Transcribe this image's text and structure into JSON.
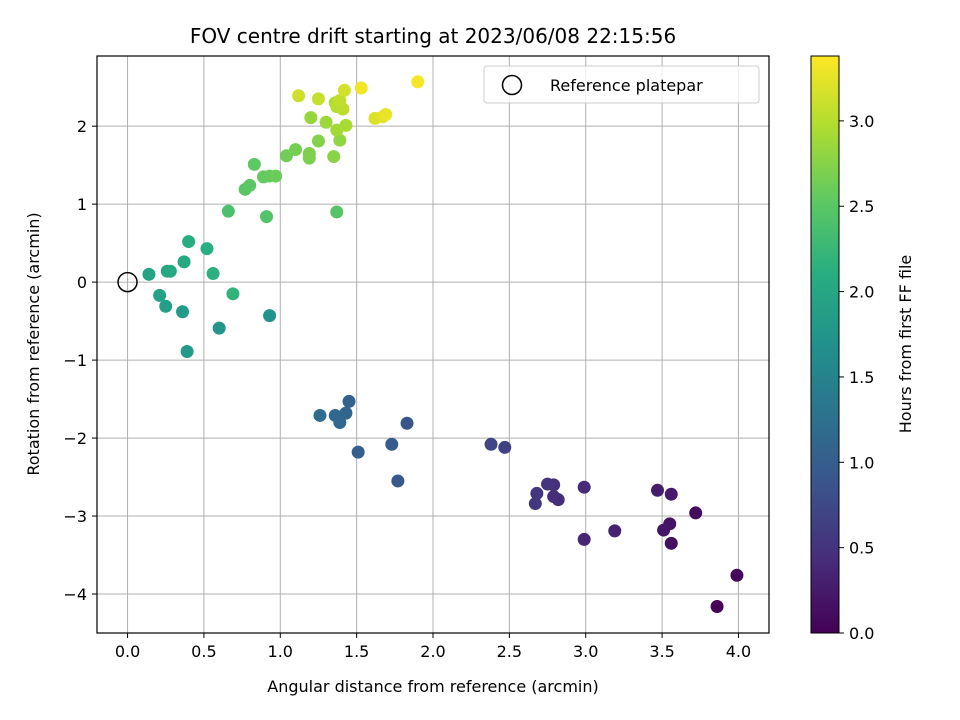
{
  "chart_data": {
    "type": "scatter",
    "title": "FOV centre drift starting at 2023/06/08 22:15:56",
    "xlabel": "Angular distance from reference (arcmin)",
    "ylabel": "Rotation from reference (arcmin)",
    "xlim": [
      -0.2,
      4.2
    ],
    "ylim": [
      -4.5,
      2.9
    ],
    "xticks": [
      0.0,
      0.5,
      1.0,
      1.5,
      2.0,
      2.5,
      3.0,
      3.5,
      4.0
    ],
    "xtick_labels": [
      "0.0",
      "0.5",
      "1.0",
      "1.5",
      "2.0",
      "2.5",
      "3.0",
      "3.5",
      "4.0"
    ],
    "yticks": [
      -4,
      -3,
      -2,
      -1,
      0,
      1,
      2
    ],
    "ytick_labels": [
      "−4",
      "−3",
      "−2",
      "−1",
      "0",
      "1",
      "2"
    ],
    "grid": true,
    "legend": {
      "position": "upper right",
      "entries": [
        "Reference platepar"
      ]
    },
    "reference_point": {
      "x": 0.0,
      "y": 0.0
    },
    "colorbar": {
      "label": "Hours from first FF file",
      "colormap": "viridis",
      "min": 0.0,
      "max": 3.38,
      "ticks": [
        0.0,
        0.5,
        1.0,
        1.5,
        2.0,
        2.5,
        3.0
      ],
      "tick_labels": [
        "0.0",
        "0.5",
        "1.0",
        "1.5",
        "2.0",
        "2.5",
        "3.0"
      ]
    },
    "points": [
      {
        "x": 3.86,
        "y": -4.16,
        "c": 0.03
      },
      {
        "x": 3.99,
        "y": -3.76,
        "c": 0.06
      },
      {
        "x": 3.72,
        "y": -2.96,
        "c": 0.1
      },
      {
        "x": 3.56,
        "y": -3.35,
        "c": 0.14
      },
      {
        "x": 3.55,
        "y": -3.1,
        "c": 0.18
      },
      {
        "x": 3.51,
        "y": -3.18,
        "c": 0.21
      },
      {
        "x": 3.56,
        "y": -2.72,
        "c": 0.24
      },
      {
        "x": 3.47,
        "y": -2.67,
        "c": 0.27
      },
      {
        "x": 3.19,
        "y": -3.19,
        "c": 0.32
      },
      {
        "x": 2.99,
        "y": -3.3,
        "c": 0.36
      },
      {
        "x": 2.99,
        "y": -2.63,
        "c": 0.4
      },
      {
        "x": 2.82,
        "y": -2.79,
        "c": 0.43
      },
      {
        "x": 2.79,
        "y": -2.75,
        "c": 0.45
      },
      {
        "x": 2.79,
        "y": -2.6,
        "c": 0.47
      },
      {
        "x": 2.75,
        "y": -2.59,
        "c": 0.5
      },
      {
        "x": 2.68,
        "y": -2.71,
        "c": 0.53
      },
      {
        "x": 2.67,
        "y": -2.84,
        "c": 0.56
      },
      {
        "x": 2.47,
        "y": -2.12,
        "c": 0.66
      },
      {
        "x": 2.38,
        "y": -2.08,
        "c": 0.7
      },
      {
        "x": 1.83,
        "y": -1.81,
        "c": 0.9
      },
      {
        "x": 1.77,
        "y": -2.55,
        "c": 0.94
      },
      {
        "x": 1.73,
        "y": -2.08,
        "c": 0.97
      },
      {
        "x": 1.51,
        "y": -2.18,
        "c": 1.02
      },
      {
        "x": 1.45,
        "y": -1.53,
        "c": 1.07
      },
      {
        "x": 1.43,
        "y": -1.68,
        "c": 1.1
      },
      {
        "x": 1.39,
        "y": -1.8,
        "c": 1.13
      },
      {
        "x": 1.36,
        "y": -1.71,
        "c": 1.15
      },
      {
        "x": 1.26,
        "y": -1.71,
        "c": 1.18
      },
      {
        "x": 0.93,
        "y": -0.43,
        "c": 1.72
      },
      {
        "x": 0.6,
        "y": -0.59,
        "c": 1.77
      },
      {
        "x": 0.39,
        "y": -0.89,
        "c": 1.8
      },
      {
        "x": 0.36,
        "y": -0.38,
        "c": 1.84
      },
      {
        "x": 0.25,
        "y": -0.31,
        "c": 1.88
      },
      {
        "x": 0.21,
        "y": -0.17,
        "c": 1.92
      },
      {
        "x": 0.14,
        "y": 0.1,
        "c": 1.95
      },
      {
        "x": 0.26,
        "y": 0.14,
        "c": 1.99
      },
      {
        "x": 0.28,
        "y": 0.14,
        "c": 2.02
      },
      {
        "x": 0.37,
        "y": 0.26,
        "c": 2.05
      },
      {
        "x": 0.4,
        "y": 0.52,
        "c": 2.09
      },
      {
        "x": 0.52,
        "y": 0.43,
        "c": 2.12
      },
      {
        "x": 0.56,
        "y": 0.11,
        "c": 2.15
      },
      {
        "x": 0.69,
        "y": -0.15,
        "c": 2.19
      },
      {
        "x": 0.66,
        "y": 0.91,
        "c": 2.4
      },
      {
        "x": 0.91,
        "y": 0.84,
        "c": 2.44
      },
      {
        "x": 1.37,
        "y": 0.9,
        "c": 2.47
      },
      {
        "x": 0.77,
        "y": 1.19,
        "c": 2.49
      },
      {
        "x": 0.8,
        "y": 1.24,
        "c": 2.51
      },
      {
        "x": 0.83,
        "y": 1.51,
        "c": 2.53
      },
      {
        "x": 0.89,
        "y": 1.35,
        "c": 2.56
      },
      {
        "x": 0.93,
        "y": 1.36,
        "c": 2.58
      },
      {
        "x": 0.97,
        "y": 1.36,
        "c": 2.6
      },
      {
        "x": 1.04,
        "y": 1.62,
        "c": 2.63
      },
      {
        "x": 1.1,
        "y": 1.7,
        "c": 2.66
      },
      {
        "x": 1.19,
        "y": 1.59,
        "c": 2.69
      },
      {
        "x": 1.19,
        "y": 1.65,
        "c": 2.71
      },
      {
        "x": 1.25,
        "y": 1.81,
        "c": 2.74
      },
      {
        "x": 1.35,
        "y": 1.61,
        "c": 2.76
      },
      {
        "x": 1.39,
        "y": 1.82,
        "c": 2.8
      },
      {
        "x": 1.2,
        "y": 2.11,
        "c": 2.83
      },
      {
        "x": 1.3,
        "y": 2.05,
        "c": 2.87
      },
      {
        "x": 1.37,
        "y": 1.95,
        "c": 2.9
      },
      {
        "x": 1.43,
        "y": 2.01,
        "c": 2.93
      },
      {
        "x": 1.36,
        "y": 2.3,
        "c": 2.96
      },
      {
        "x": 1.37,
        "y": 2.25,
        "c": 3.0
      },
      {
        "x": 1.41,
        "y": 2.22,
        "c": 3.03
      },
      {
        "x": 1.39,
        "y": 2.33,
        "c": 3.06
      },
      {
        "x": 1.25,
        "y": 2.35,
        "c": 3.09
      },
      {
        "x": 1.12,
        "y": 2.39,
        "c": 3.13
      },
      {
        "x": 1.42,
        "y": 2.46,
        "c": 3.16
      },
      {
        "x": 1.62,
        "y": 2.1,
        "c": 3.2
      },
      {
        "x": 1.67,
        "y": 2.12,
        "c": 3.24
      },
      {
        "x": 1.69,
        "y": 2.15,
        "c": 3.27
      },
      {
        "x": 1.53,
        "y": 2.49,
        "c": 3.31
      },
      {
        "x": 1.9,
        "y": 2.57,
        "c": 3.34
      }
    ]
  }
}
